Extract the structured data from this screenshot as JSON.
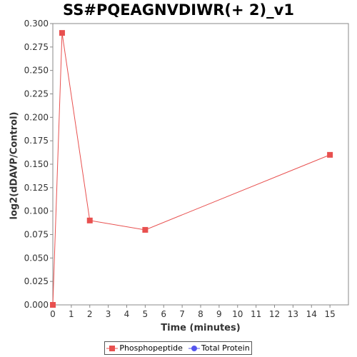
{
  "chart_data": {
    "type": "line",
    "title": "SS#PQEAGNVDIWR(+ 2)_v1",
    "xlabel": "Time (minutes)",
    "ylabel": "log2(dDAVP/Control)",
    "xlim": [
      0,
      16
    ],
    "ylim": [
      0,
      0.3
    ],
    "x_ticks": [
      0,
      1,
      2,
      3,
      4,
      5,
      6,
      7,
      8,
      9,
      10,
      11,
      12,
      13,
      14,
      15
    ],
    "y_ticks": [
      "0.000",
      "0.025",
      "0.050",
      "0.075",
      "0.100",
      "0.125",
      "0.150",
      "0.175",
      "0.200",
      "0.225",
      "0.250",
      "0.275",
      "0.300"
    ],
    "grid": false,
    "legend_position": "bottom",
    "series": [
      {
        "name": "Phosphopeptide",
        "color": "#e8504f",
        "marker": "square",
        "x": [
          0,
          0.5,
          2,
          5,
          15
        ],
        "y": [
          0.0,
          0.29,
          0.09,
          0.08,
          0.16
        ]
      },
      {
        "name": "Total Protein",
        "color": "#5555ee",
        "marker": "circle",
        "x": [],
        "y": []
      }
    ]
  }
}
